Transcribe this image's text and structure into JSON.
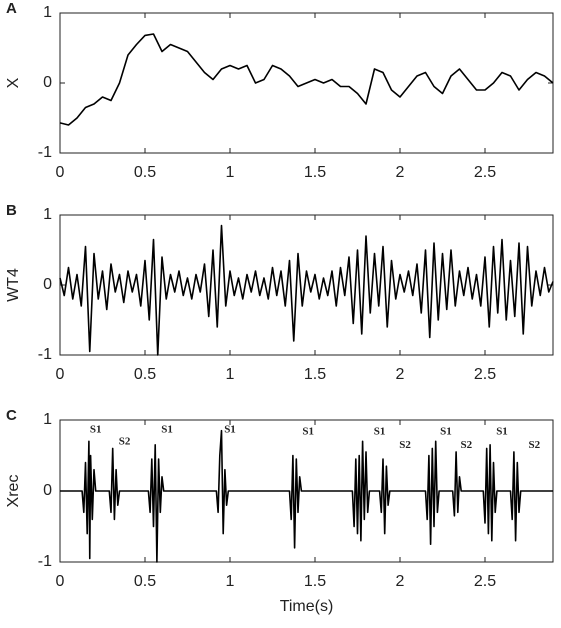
{
  "chart_data": [
    {
      "type": "line",
      "panel_label": "A",
      "ylabel": "X",
      "color": "#000000",
      "xlim": [
        0,
        2.9
      ],
      "ylim": [
        -1,
        1
      ],
      "xticks": [
        0,
        0.5,
        1,
        1.5,
        2,
        2.5
      ],
      "yticks": [
        -1,
        0,
        1
      ],
      "x": [
        0,
        0.05,
        0.1,
        0.15,
        0.2,
        0.25,
        0.3,
        0.35,
        0.4,
        0.45,
        0.5,
        0.55,
        0.6,
        0.65,
        0.7,
        0.75,
        0.8,
        0.85,
        0.9,
        0.95,
        1,
        1.05,
        1.1,
        1.15,
        1.2,
        1.25,
        1.3,
        1.35,
        1.4,
        1.45,
        1.5,
        1.55,
        1.6,
        1.65,
        1.7,
        1.75,
        1.8,
        1.85,
        1.9,
        1.95,
        2,
        2.05,
        2.1,
        2.15,
        2.2,
        2.25,
        2.3,
        2.35,
        2.4,
        2.45,
        2.5,
        2.55,
        2.6,
        2.65,
        2.7,
        2.75,
        2.8,
        2.85,
        2.9
      ],
      "values": [
        -0.57,
        -0.6,
        -0.5,
        -0.35,
        -0.3,
        -0.2,
        -0.25,
        0.0,
        0.4,
        0.55,
        0.68,
        0.7,
        0.45,
        0.55,
        0.5,
        0.45,
        0.3,
        0.15,
        0.05,
        0.2,
        0.25,
        0.2,
        0.25,
        0.0,
        0.05,
        0.25,
        0.2,
        0.1,
        -0.05,
        0.0,
        0.05,
        0.0,
        0.05,
        -0.05,
        -0.05,
        -0.15,
        -0.3,
        0.2,
        0.15,
        -0.1,
        -0.2,
        -0.05,
        0.1,
        0.15,
        -0.05,
        -0.15,
        0.1,
        0.2,
        0.05,
        -0.1,
        -0.1,
        0.0,
        0.15,
        0.1,
        -0.1,
        0.05,
        0.15,
        0.1,
        0.0
      ]
    },
    {
      "type": "line",
      "panel_label": "B",
      "ylabel": "WT4",
      "color": "#000000",
      "xlim": [
        0,
        2.9
      ],
      "ylim": [
        -1,
        1
      ],
      "xticks": [
        0,
        0.5,
        1,
        1.5,
        2,
        2.5
      ],
      "yticks": [
        -1,
        0,
        1
      ],
      "x": [
        0,
        0.025,
        0.05,
        0.075,
        0.1,
        0.125,
        0.15,
        0.175,
        0.2,
        0.225,
        0.25,
        0.275,
        0.3,
        0.325,
        0.35,
        0.375,
        0.4,
        0.425,
        0.45,
        0.475,
        0.5,
        0.525,
        0.55,
        0.575,
        0.6,
        0.625,
        0.65,
        0.675,
        0.7,
        0.725,
        0.75,
        0.775,
        0.8,
        0.825,
        0.85,
        0.875,
        0.9,
        0.925,
        0.95,
        0.975,
        1,
        1.025,
        1.05,
        1.075,
        1.1,
        1.125,
        1.15,
        1.175,
        1.2,
        1.225,
        1.25,
        1.275,
        1.3,
        1.325,
        1.35,
        1.375,
        1.4,
        1.425,
        1.45,
        1.475,
        1.5,
        1.525,
        1.55,
        1.575,
        1.6,
        1.625,
        1.65,
        1.675,
        1.7,
        1.725,
        1.75,
        1.775,
        1.8,
        1.825,
        1.85,
        1.875,
        1.9,
        1.925,
        1.95,
        1.975,
        2,
        2.025,
        2.05,
        2.075,
        2.1,
        2.125,
        2.15,
        2.175,
        2.2,
        2.225,
        2.25,
        2.275,
        2.3,
        2.325,
        2.35,
        2.375,
        2.4,
        2.425,
        2.45,
        2.475,
        2.5,
        2.525,
        2.55,
        2.575,
        2.6,
        2.625,
        2.65,
        2.675,
        2.7,
        2.725,
        2.75,
        2.775,
        2.8,
        2.825,
        2.85,
        2.875,
        2.9
      ],
      "values": [
        0.1,
        -0.15,
        0.25,
        -0.2,
        0.15,
        -0.3,
        0.55,
        -0.95,
        0.45,
        -0.2,
        0.2,
        -0.35,
        0.3,
        -0.1,
        0.15,
        -0.25,
        0.2,
        -0.1,
        0.15,
        -0.3,
        0.35,
        -0.5,
        0.65,
        -1.0,
        0.4,
        -0.2,
        0.15,
        -0.1,
        0.2,
        -0.15,
        0.1,
        -0.2,
        0.15,
        -0.1,
        0.3,
        -0.45,
        0.5,
        -0.6,
        0.85,
        -0.3,
        0.2,
        -0.15,
        0.1,
        -0.2,
        0.15,
        -0.1,
        0.2,
        -0.15,
        0.1,
        -0.2,
        0.25,
        -0.15,
        0.2,
        -0.3,
        0.35,
        -0.8,
        0.45,
        -0.3,
        0.2,
        -0.1,
        0.15,
        -0.2,
        0.1,
        -0.15,
        0.2,
        -0.3,
        0.25,
        -0.15,
        0.4,
        -0.55,
        0.5,
        -0.7,
        0.7,
        -0.4,
        0.45,
        -0.3,
        0.55,
        -0.6,
        0.35,
        -0.2,
        0.15,
        -0.1,
        0.2,
        -0.15,
        0.3,
        -0.4,
        0.5,
        -0.75,
        0.6,
        -0.5,
        0.45,
        -0.35,
        0.5,
        -0.3,
        0.2,
        -0.15,
        0.25,
        -0.2,
        0.15,
        -0.3,
        0.4,
        -0.6,
        0.55,
        -0.4,
        0.65,
        -0.5,
        0.35,
        -0.45,
        0.6,
        -0.7,
        0.55,
        -0.3,
        0.2,
        -0.15,
        0.25,
        -0.1,
        0.05
      ]
    },
    {
      "type": "line",
      "panel_label": "C",
      "ylabel": "Xrec",
      "xlabel": "Time(s)",
      "color": "#000000",
      "xlim": [
        0,
        2.9
      ],
      "ylim": [
        -1,
        1
      ],
      "xticks": [
        0,
        0.5,
        1,
        1.5,
        2,
        2.5
      ],
      "yticks": [
        -1,
        0,
        1
      ],
      "x": [
        0,
        0.13,
        0.14,
        0.15,
        0.16,
        0.17,
        0.175,
        0.18,
        0.19,
        0.2,
        0.21,
        0.29,
        0.3,
        0.31,
        0.32,
        0.33,
        0.34,
        0.35,
        0.52,
        0.53,
        0.54,
        0.55,
        0.56,
        0.57,
        0.58,
        0.59,
        0.6,
        0.61,
        0.92,
        0.93,
        0.94,
        0.95,
        0.96,
        0.97,
        0.98,
        0.99,
        1.35,
        1.36,
        1.37,
        1.38,
        1.39,
        1.4,
        1.41,
        1.42,
        1.72,
        1.73,
        1.74,
        1.75,
        1.76,
        1.77,
        1.78,
        1.79,
        1.8,
        1.81,
        1.82,
        1.88,
        1.89,
        1.9,
        1.91,
        1.92,
        1.93,
        1.94,
        2.15,
        2.16,
        2.17,
        2.18,
        2.19,
        2.2,
        2.21,
        2.22,
        2.23,
        2.31,
        2.32,
        2.33,
        2.34,
        2.35,
        2.36,
        2.49,
        2.5,
        2.51,
        2.52,
        2.53,
        2.54,
        2.55,
        2.56,
        2.57,
        2.65,
        2.66,
        2.67,
        2.68,
        2.69,
        2.7,
        2.71,
        2.9
      ],
      "values": [
        0,
        0,
        -0.3,
        0.4,
        -0.6,
        0.7,
        -0.95,
        0.5,
        -0.4,
        0.3,
        0,
        0,
        -0.3,
        0.6,
        -0.4,
        0.3,
        -0.2,
        0,
        0,
        -0.3,
        0.45,
        -0.5,
        0.65,
        -1.0,
        0.45,
        -0.3,
        0.2,
        0,
        0,
        -0.3,
        0.5,
        0.85,
        -0.6,
        0.3,
        -0.2,
        0,
        0,
        -0.4,
        0.5,
        -0.8,
        0.45,
        -0.3,
        0.2,
        0,
        0,
        -0.5,
        0.45,
        -0.6,
        0.5,
        -0.7,
        0.7,
        -0.4,
        0.55,
        -0.3,
        0,
        0,
        -0.3,
        0.45,
        -0.6,
        0.35,
        -0.2,
        0,
        0,
        -0.4,
        0.5,
        -0.75,
        0.6,
        -0.5,
        0.7,
        -0.3,
        0,
        0,
        -0.35,
        0.55,
        -0.3,
        0.2,
        0,
        0,
        -0.45,
        0.6,
        -0.6,
        0.65,
        -0.7,
        0.4,
        -0.3,
        0,
        0,
        -0.4,
        0.55,
        -0.7,
        0.4,
        -0.3,
        0,
        0
      ],
      "annotations": [
        {
          "text": "S1",
          "x": 0.21,
          "y": 0.86
        },
        {
          "text": "S2",
          "x": 0.38,
          "y": 0.69
        },
        {
          "text": "S1",
          "x": 0.63,
          "y": 0.86
        },
        {
          "text": "S1",
          "x": 1.0,
          "y": 0.86
        },
        {
          "text": "S1",
          "x": 1.46,
          "y": 0.83
        },
        {
          "text": "S1",
          "x": 1.88,
          "y": 0.83
        },
        {
          "text": "S2",
          "x": 2.03,
          "y": 0.64
        },
        {
          "text": "S1",
          "x": 2.27,
          "y": 0.83
        },
        {
          "text": "S2",
          "x": 2.39,
          "y": 0.64
        },
        {
          "text": "S1",
          "x": 2.6,
          "y": 0.83
        },
        {
          "text": "S2",
          "x": 2.79,
          "y": 0.64
        }
      ]
    }
  ]
}
